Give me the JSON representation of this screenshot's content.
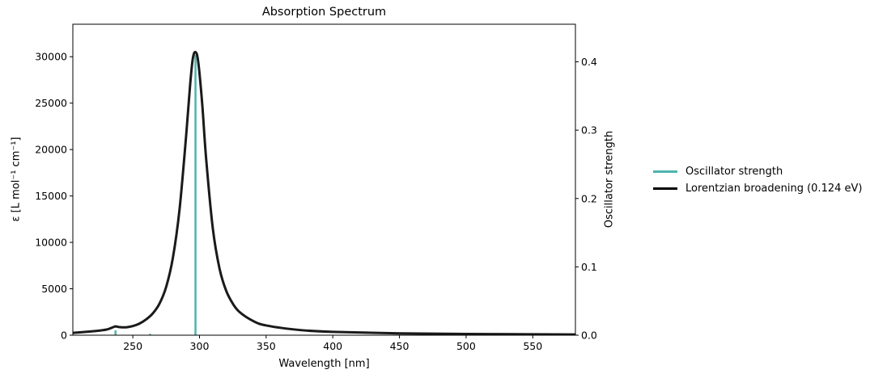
{
  "chart_data": {
    "type": "line",
    "title": "Absorption Spectrum",
    "xlabel": "Wavelength [nm]",
    "ylabel": "ε [L mol⁻¹ cm⁻¹]",
    "ylabel_right": "Oscillator strength",
    "xlim": [
      205,
      582
    ],
    "ylim": [
      0,
      33500
    ],
    "ylim_right": [
      0,
      0.455
    ],
    "grid": false,
    "legend_position": "outside right",
    "x_ticks": [
      250,
      300,
      350,
      400,
      450,
      500,
      550
    ],
    "y_ticks": [
      0,
      5000,
      10000,
      15000,
      20000,
      25000,
      30000
    ],
    "y_right_ticks": [
      0.0,
      0.1,
      0.2,
      0.3,
      0.4
    ],
    "series": [
      {
        "name": "Oscillator strength",
        "type": "stem",
        "axis": "right",
        "color": "#4fb3ad",
        "x": [
          237,
          263,
          297
        ],
        "values": [
          0.007,
          0.002,
          0.41
        ]
      },
      {
        "name": "Lorentzian broadening (0.124 eV)",
        "type": "line",
        "axis": "left",
        "color": "#1a1a1a",
        "x": [
          205,
          220,
          230,
          235,
          237,
          240,
          245,
          250,
          255,
          260,
          265,
          270,
          275,
          280,
          285,
          290,
          293,
          295,
          297,
          299,
          302,
          305,
          310,
          315,
          320,
          325,
          330,
          340,
          350,
          375,
          400,
          450,
          500,
          550,
          582
        ],
        "values": [
          250,
          420,
          600,
          850,
          950,
          870,
          850,
          980,
          1250,
          1700,
          2350,
          3400,
          5200,
          8300,
          13500,
          21500,
          27000,
          29800,
          30500,
          29500,
          25000,
          19000,
          11500,
          7200,
          4800,
          3400,
          2500,
          1550,
          1050,
          560,
          360,
          200,
          130,
          95,
          75
        ]
      }
    ]
  },
  "legend": {
    "items": [
      {
        "label": "Oscillator strength",
        "color": "#4fb3ad"
      },
      {
        "label": "Lorentzian broadening (0.124 eV)",
        "color": "#000000"
      }
    ]
  }
}
